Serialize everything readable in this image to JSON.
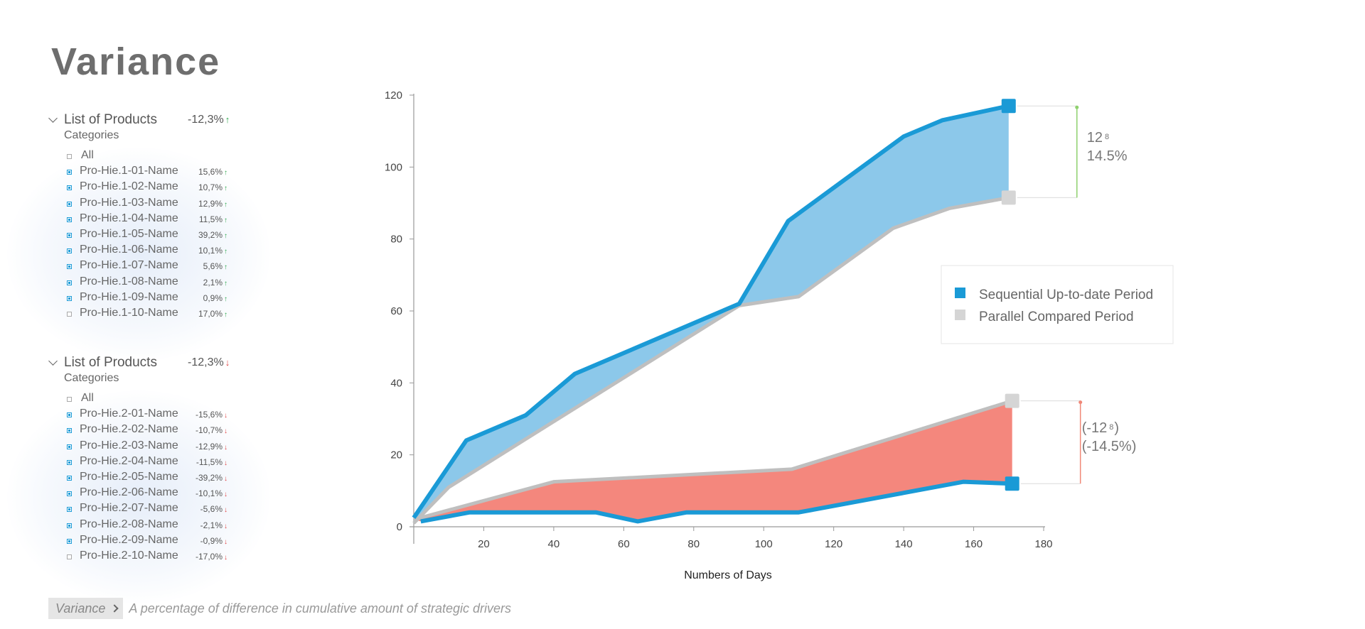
{
  "title": "Variance",
  "panels": [
    {
      "title": "List of Products",
      "total": "-12,3%",
      "trend": "up",
      "subtitle": "Categories",
      "all_label": "All",
      "items": [
        {
          "name": "Pro-Hie.1-01-Name",
          "pct": "15,6%",
          "checked": true
        },
        {
          "name": "Pro-Hie.1-02-Name",
          "pct": "10,7%",
          "checked": true
        },
        {
          "name": "Pro-Hie.1-03-Name",
          "pct": "12,9%",
          "checked": true
        },
        {
          "name": "Pro-Hie.1-04-Name",
          "pct": "11,5%",
          "checked": true
        },
        {
          "name": "Pro-Hie.1-05-Name",
          "pct": "39,2%",
          "checked": true
        },
        {
          "name": "Pro-Hie.1-06-Name",
          "pct": "10,1%",
          "checked": true
        },
        {
          "name": "Pro-Hie.1-07-Name",
          "pct": "5,6%",
          "checked": true
        },
        {
          "name": "Pro-Hie.1-08-Name",
          "pct": "2,1%",
          "checked": true
        },
        {
          "name": "Pro-Hie.1-09-Name",
          "pct": "0,9%",
          "checked": true
        },
        {
          "name": "Pro-Hie.1-10-Name",
          "pct": "17,0%",
          "checked": false
        }
      ]
    },
    {
      "title": "List of Products",
      "total": "-12,3%",
      "trend": "down",
      "subtitle": "Categories",
      "all_label": "All",
      "items": [
        {
          "name": "Pro-Hie.2-01-Name",
          "pct": "-15,6%",
          "checked": true
        },
        {
          "name": "Pro-Hie.2-02-Name",
          "pct": "-10,7%",
          "checked": true
        },
        {
          "name": "Pro-Hie.2-03-Name",
          "pct": "-12,9%",
          "checked": true
        },
        {
          "name": "Pro-Hie.2-04-Name",
          "pct": "-11,5%",
          "checked": true
        },
        {
          "name": "Pro-Hie.2-05-Name",
          "pct": "-39,2%",
          "checked": true
        },
        {
          "name": "Pro-Hie.2-06-Name",
          "pct": "-10,1%",
          "checked": true
        },
        {
          "name": "Pro-Hie.2-07-Name",
          "pct": "-5,6%",
          "checked": true
        },
        {
          "name": "Pro-Hie.2-08-Name",
          "pct": "-2,1%",
          "checked": true
        },
        {
          "name": "Pro-Hie.2-09-Name",
          "pct": "-0,9%",
          "checked": true
        },
        {
          "name": "Pro-Hie.2-10-Name",
          "pct": "-17,0%",
          "checked": false
        }
      ]
    }
  ],
  "footer": {
    "tag": "Variance",
    "description": "A percentage of difference in cumulative amount of strategic drivers"
  },
  "colors": {
    "current": "#1a9ad6",
    "current_fill": "#8cc8ea",
    "compared": "#bfbfbf",
    "compared_marker": "#d5d5d5",
    "negative_fill": "#f4877d",
    "positive_bracket": "#8fd16e",
    "negative_bracket": "#f08878",
    "up_arrow": "#2fa84f",
    "down_arrow": "#e04545"
  },
  "chart_data": {
    "type": "area",
    "xlabel": "Numbers of Days",
    "ylabel": "",
    "xlim": [
      0,
      180
    ],
    "ylim": [
      0,
      120
    ],
    "xticks": [
      20,
      40,
      60,
      80,
      100,
      120,
      140,
      160,
      180
    ],
    "yticks": [
      0,
      20,
      40,
      60,
      80,
      100,
      120
    ],
    "legend": {
      "position": "right",
      "entries": [
        "Sequential Up-to-date Period",
        "Parallel Compared Period"
      ]
    },
    "series": [
      {
        "name": "Sequential Up-to-date Period",
        "group": "upper",
        "x": [
          0,
          15,
          32,
          46,
          93,
          107,
          140,
          151,
          170
        ],
        "values": [
          2.5,
          24,
          31,
          42.5,
          62,
          85,
          108.5,
          113,
          117
        ]
      },
      {
        "name": "Parallel Compared Period",
        "group": "upper",
        "x": [
          0,
          10,
          93,
          110,
          137,
          153,
          170
        ],
        "values": [
          1,
          11,
          61.5,
          64,
          83,
          88.5,
          91.5
        ]
      },
      {
        "name": "Sequential Up-to-date Period",
        "group": "lower",
        "x": [
          2,
          16,
          52,
          64,
          78,
          110,
          157,
          171
        ],
        "values": [
          1.5,
          4,
          4,
          1.5,
          4,
          4,
          12.5,
          12
        ]
      },
      {
        "name": "Parallel Compared Period",
        "group": "lower",
        "x": [
          0,
          40,
          108,
          171
        ],
        "values": [
          2,
          12.5,
          16,
          35
        ]
      }
    ],
    "annotations": [
      {
        "group": "upper",
        "main": "12",
        "frac": "8",
        "pct": "14.5%",
        "from": 117,
        "to": 91.5
      },
      {
        "group": "lower",
        "main": "(-12",
        "frac": "8",
        "close": ")",
        "pct": "(-14.5%)",
        "from": 35,
        "to": 12
      }
    ]
  }
}
